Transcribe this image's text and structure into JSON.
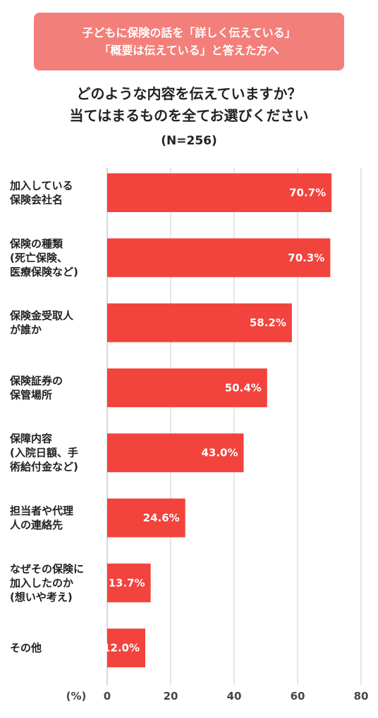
{
  "header": {
    "banner_line1": "子どもに保険の話を「詳しく伝えている」",
    "banner_line2": "「概要は伝えている」と答えた方へ",
    "question_line1": "どのような内容を伝えていますか？",
    "question_line2": "当てはまるものを全てお選びください",
    "sample_size": "(N=256)"
  },
  "colors": {
    "bar": "#f2433d",
    "banner": "#f37f7a",
    "grid": "#cccccc"
  },
  "chart_data": {
    "type": "bar",
    "orientation": "horizontal",
    "categories": [
      [
        "加入している",
        "保険会社名"
      ],
      [
        "保険の種類",
        "(死亡保険、",
        "医療保険など)"
      ],
      [
        "保険金受取人",
        "が誰か"
      ],
      [
        "保険証券の",
        "保管場所"
      ],
      [
        "保障内容",
        "(入院日額、手",
        "術給付金など)"
      ],
      [
        "担当者や代理",
        "人の連絡先"
      ],
      [
        "なぜその保険に",
        "加入したのか",
        "(想いや考え)"
      ],
      [
        "その他"
      ]
    ],
    "values": [
      70.7,
      70.3,
      58.2,
      50.4,
      43.0,
      24.6,
      13.7,
      12.0
    ],
    "value_labels": [
      "70.7%",
      "70.3%",
      "58.2%",
      "50.4%",
      "43.0%",
      "24.6%",
      "13.7%",
      "12.0%"
    ],
    "xlim": [
      0,
      80
    ],
    "xticks": [
      0,
      20,
      40,
      60,
      80
    ],
    "unit_label": "(%)",
    "grid": true
  }
}
